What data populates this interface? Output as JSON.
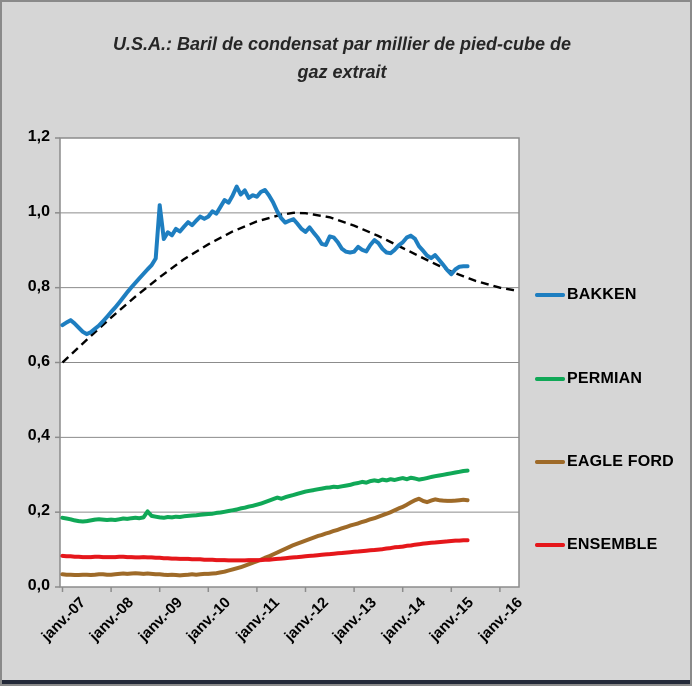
{
  "title": {
    "line1": "U.S.A.: Baril de condensat par millier de pied-cube de",
    "line2": "gaz extrait"
  },
  "chart_data": {
    "type": "line",
    "title": "U.S.A.: Baril de condensat par millier de pied-cube de gaz extrait",
    "x_start": "2007-01",
    "x_unit": "month",
    "x_tick_labels": [
      "janv.-07",
      "janv.-08",
      "janv.-09",
      "janv.-10",
      "janv.-11",
      "janv.-12",
      "janv.-13",
      "janv.-14",
      "janv.-15",
      "janv.-16"
    ],
    "y_tick_labels": [
      "0,0",
      "0,2",
      "0,4",
      "0,6",
      "0,8",
      "1,0",
      "1,2"
    ],
    "ylim": [
      0,
      1.2
    ],
    "grid": "horizontal",
    "legend_position": "right",
    "series": [
      {
        "name": "BAKKEN",
        "color": "#1e7ec0",
        "values": [
          0.7,
          0.707,
          0.713,
          0.704,
          0.693,
          0.682,
          0.676,
          0.681,
          0.69,
          0.699,
          0.71,
          0.722,
          0.735,
          0.747,
          0.76,
          0.774,
          0.788,
          0.801,
          0.813,
          0.825,
          0.837,
          0.849,
          0.86,
          0.878,
          1.02,
          0.93,
          0.948,
          0.94,
          0.957,
          0.95,
          0.963,
          0.975,
          0.967,
          0.979,
          0.99,
          0.984,
          0.99,
          1.004,
          0.998,
          1.016,
          1.034,
          1.027,
          1.046,
          1.07,
          1.049,
          1.06,
          1.04,
          1.047,
          1.043,
          1.056,
          1.061,
          1.046,
          1.028,
          1.004,
          0.986,
          0.974,
          0.979,
          0.983,
          0.971,
          0.957,
          0.949,
          0.961,
          0.947,
          0.934,
          0.917,
          0.914,
          0.937,
          0.934,
          0.921,
          0.904,
          0.896,
          0.894,
          0.896,
          0.909,
          0.901,
          0.897,
          0.914,
          0.927,
          0.919,
          0.904,
          0.894,
          0.892,
          0.901,
          0.913,
          0.921,
          0.934,
          0.939,
          0.931,
          0.911,
          0.899,
          0.886,
          0.879,
          0.887,
          0.874,
          0.861,
          0.847,
          0.836,
          0.849,
          0.856,
          0.857,
          0.857
        ]
      },
      {
        "name": "PERMIAN",
        "color": "#10a857",
        "values": [
          0.185,
          0.183,
          0.181,
          0.178,
          0.176,
          0.175,
          0.176,
          0.178,
          0.18,
          0.181,
          0.18,
          0.179,
          0.18,
          0.179,
          0.181,
          0.183,
          0.182,
          0.184,
          0.185,
          0.184,
          0.186,
          0.202,
          0.19,
          0.188,
          0.186,
          0.185,
          0.187,
          0.186,
          0.188,
          0.187,
          0.189,
          0.19,
          0.191,
          0.192,
          0.193,
          0.194,
          0.195,
          0.196,
          0.198,
          0.199,
          0.201,
          0.203,
          0.205,
          0.207,
          0.21,
          0.212,
          0.215,
          0.217,
          0.22,
          0.223,
          0.227,
          0.231,
          0.235,
          0.239,
          0.236,
          0.24,
          0.243,
          0.246,
          0.249,
          0.252,
          0.255,
          0.257,
          0.259,
          0.261,
          0.263,
          0.265,
          0.266,
          0.268,
          0.267,
          0.269,
          0.271,
          0.273,
          0.276,
          0.278,
          0.281,
          0.279,
          0.283,
          0.285,
          0.283,
          0.287,
          0.285,
          0.288,
          0.286,
          0.289,
          0.291,
          0.288,
          0.292,
          0.29,
          0.287,
          0.289,
          0.291,
          0.294,
          0.296,
          0.298,
          0.3,
          0.302,
          0.304,
          0.306,
          0.308,
          0.31,
          0.311
        ]
      },
      {
        "name": "EAGLE FORD",
        "color": "#9e6a28",
        "values": [
          0.034,
          0.033,
          0.033,
          0.032,
          0.032,
          0.033,
          0.033,
          0.032,
          0.033,
          0.034,
          0.034,
          0.033,
          0.033,
          0.034,
          0.035,
          0.036,
          0.035,
          0.036,
          0.037,
          0.036,
          0.035,
          0.036,
          0.035,
          0.034,
          0.034,
          0.033,
          0.032,
          0.033,
          0.032,
          0.031,
          0.032,
          0.033,
          0.034,
          0.033,
          0.034,
          0.035,
          0.035,
          0.036,
          0.037,
          0.039,
          0.041,
          0.044,
          0.047,
          0.05,
          0.053,
          0.057,
          0.061,
          0.065,
          0.069,
          0.073,
          0.078,
          0.082,
          0.087,
          0.092,
          0.097,
          0.102,
          0.107,
          0.112,
          0.116,
          0.12,
          0.124,
          0.128,
          0.132,
          0.136,
          0.139,
          0.143,
          0.146,
          0.15,
          0.153,
          0.157,
          0.16,
          0.164,
          0.167,
          0.17,
          0.174,
          0.177,
          0.181,
          0.184,
          0.188,
          0.192,
          0.196,
          0.2,
          0.205,
          0.21,
          0.214,
          0.22,
          0.226,
          0.232,
          0.236,
          0.23,
          0.227,
          0.231,
          0.234,
          0.232,
          0.231,
          0.23,
          0.23,
          0.231,
          0.232,
          0.233,
          0.232
        ]
      },
      {
        "name": "ENSEMBLE",
        "color": "#e5171b",
        "values": [
          0.083,
          0.082,
          0.082,
          0.081,
          0.081,
          0.08,
          0.08,
          0.08,
          0.081,
          0.081,
          0.08,
          0.08,
          0.08,
          0.08,
          0.081,
          0.081,
          0.08,
          0.08,
          0.079,
          0.079,
          0.08,
          0.079,
          0.079,
          0.078,
          0.078,
          0.077,
          0.077,
          0.076,
          0.076,
          0.075,
          0.075,
          0.075,
          0.074,
          0.074,
          0.074,
          0.073,
          0.073,
          0.073,
          0.072,
          0.072,
          0.072,
          0.071,
          0.071,
          0.071,
          0.071,
          0.071,
          0.072,
          0.072,
          0.072,
          0.072,
          0.073,
          0.073,
          0.074,
          0.075,
          0.076,
          0.077,
          0.078,
          0.079,
          0.08,
          0.081,
          0.082,
          0.083,
          0.084,
          0.085,
          0.086,
          0.087,
          0.088,
          0.089,
          0.09,
          0.091,
          0.092,
          0.093,
          0.094,
          0.095,
          0.096,
          0.097,
          0.098,
          0.099,
          0.1,
          0.101,
          0.103,
          0.104,
          0.106,
          0.107,
          0.108,
          0.11,
          0.111,
          0.113,
          0.114,
          0.116,
          0.117,
          0.118,
          0.119,
          0.12,
          0.121,
          0.122,
          0.123,
          0.124,
          0.124,
          0.125,
          0.125
        ]
      }
    ],
    "trend_line": {
      "style": "dashed",
      "color": "#000000",
      "points": [
        [
          0,
          0.6
        ],
        [
          0.5,
          0.661
        ],
        [
          1,
          0.72
        ],
        [
          1.5,
          0.776
        ],
        [
          2,
          0.828
        ],
        [
          2.5,
          0.876
        ],
        [
          3,
          0.916
        ],
        [
          3.5,
          0.95
        ],
        [
          4,
          0.977
        ],
        [
          4.5,
          0.995
        ],
        [
          4.75,
          1.0
        ],
        [
          5,
          0.999
        ],
        [
          5.5,
          0.988
        ],
        [
          6,
          0.966
        ],
        [
          6.5,
          0.938
        ],
        [
          7,
          0.906
        ],
        [
          7.5,
          0.874
        ],
        [
          8,
          0.843
        ],
        [
          8.5,
          0.818
        ],
        [
          9,
          0.8
        ],
        [
          9.38,
          0.791
        ]
      ]
    }
  }
}
